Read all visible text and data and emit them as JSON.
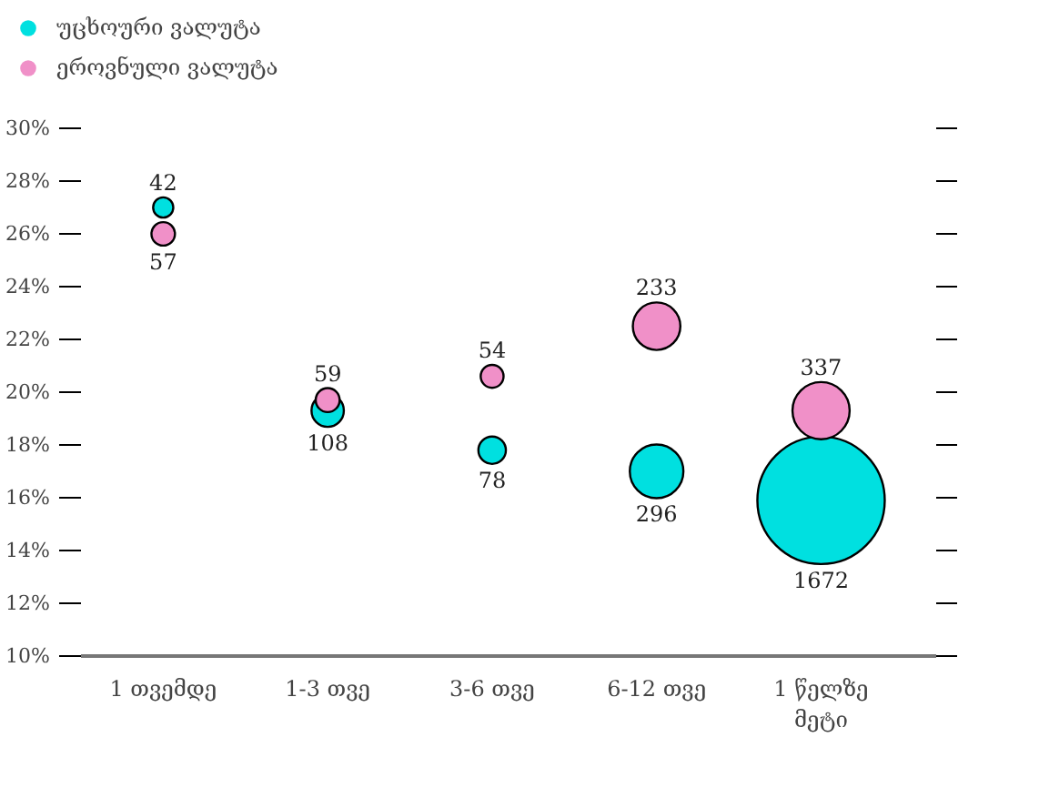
{
  "chart_data": {
    "type": "bubble",
    "categories": [
      "1 თვემდე",
      "1-3 თვე",
      "3-6 თვე",
      "6-12 თვე",
      "1 წელზე\nმეტი"
    ],
    "series": [
      {
        "name": "უცხოური ვალუტა",
        "color": "#00e0e0",
        "values": [
          27.0,
          19.3,
          17.8,
          17.0,
          15.9
        ],
        "sizes": [
          42,
          108,
          78,
          296,
          1672
        ],
        "value_labels": [
          "42",
          "108",
          "78",
          "296",
          "1672"
        ]
      },
      {
        "name": "ეროვნული ვალუტა",
        "color": "#f090c8",
        "values": [
          26.0,
          19.7,
          20.6,
          22.5,
          19.3
        ],
        "sizes": [
          57,
          59,
          54,
          233,
          337
        ],
        "value_labels": [
          "57",
          "59",
          "54",
          "233",
          "337"
        ]
      }
    ],
    "ylim": [
      10,
      30
    ],
    "yticks": [
      {
        "value": 10,
        "label": "10%"
      },
      {
        "value": 12,
        "label": "12%"
      },
      {
        "value": 14,
        "label": "14%"
      },
      {
        "value": 16,
        "label": "16%"
      },
      {
        "value": 18,
        "label": "18%"
      },
      {
        "value": 20,
        "label": "20%"
      },
      {
        "value": 22,
        "label": "22%"
      },
      {
        "value": 24,
        "label": "24%"
      },
      {
        "value": 26,
        "label": "26%"
      },
      {
        "value": 28,
        "label": "28%"
      },
      {
        "value": 30,
        "label": "30%"
      }
    ],
    "grid": false,
    "legend": "top left"
  }
}
